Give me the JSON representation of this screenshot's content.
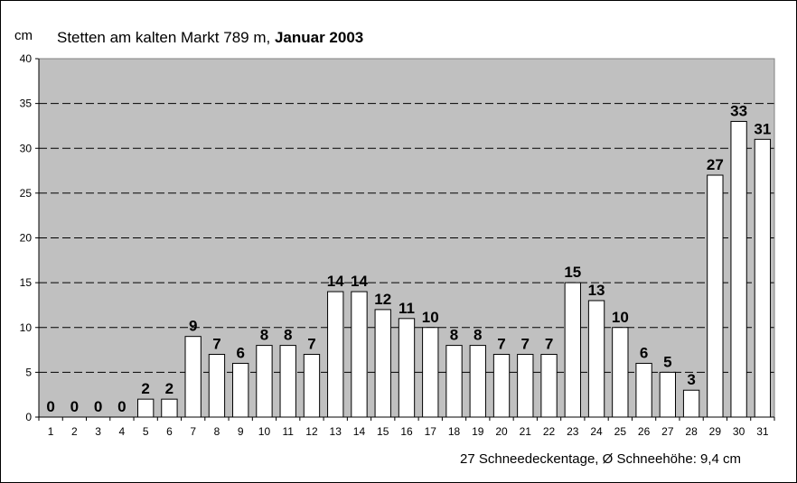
{
  "chart_data": {
    "type": "bar",
    "title_prefix": "Stetten am kalten Markt  789 m, ",
    "title_bold": "Januar 2003",
    "ylabel": "cm",
    "xlabel": "",
    "ylim": [
      0,
      40
    ],
    "yticks": [
      0,
      5,
      10,
      15,
      20,
      25,
      30,
      35,
      40
    ],
    "grid": true,
    "categories": [
      "1",
      "2",
      "3",
      "4",
      "5",
      "6",
      "7",
      "8",
      "9",
      "10",
      "11",
      "12",
      "13",
      "14",
      "15",
      "16",
      "17",
      "18",
      "19",
      "20",
      "21",
      "22",
      "23",
      "24",
      "25",
      "26",
      "27",
      "28",
      "29",
      "30",
      "31"
    ],
    "values": [
      0,
      0,
      0,
      0,
      2,
      2,
      9,
      7,
      6,
      8,
      8,
      7,
      14,
      14,
      12,
      11,
      10,
      8,
      8,
      7,
      7,
      7,
      15,
      13,
      10,
      6,
      5,
      3,
      27,
      33,
      31
    ],
    "footer": "27 Schneedeckentage,  Ø Schneehöhe:  9,4 cm",
    "colors": {
      "plot_background": "#c0c0c0",
      "bar_fill": "#ffffff",
      "bar_stroke": "#000000",
      "gridline": "#000000"
    }
  }
}
